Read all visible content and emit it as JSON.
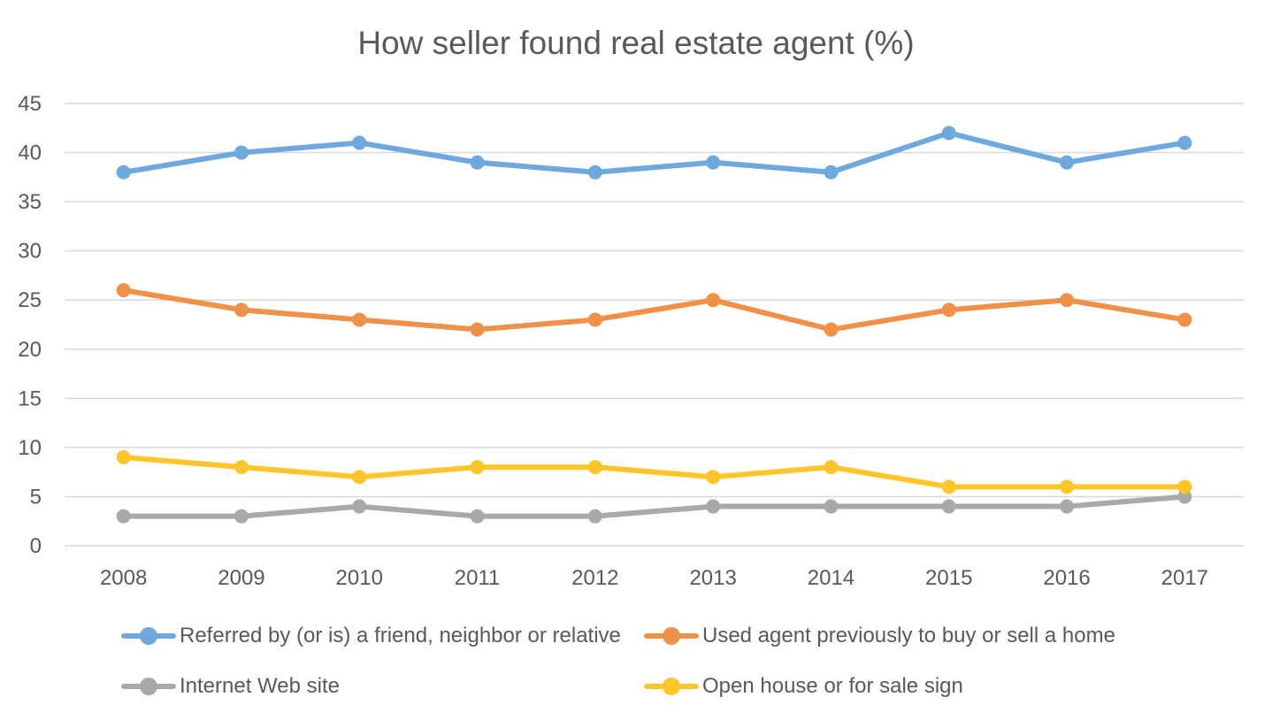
{
  "chart_data": {
    "type": "line",
    "title": "How seller found real estate agent (%)",
    "xlabel": "",
    "ylabel": "",
    "ylim": [
      0,
      45
    ],
    "yticks": [
      "0",
      "5",
      "10",
      "15",
      "20",
      "25",
      "30",
      "35",
      "40",
      "45"
    ],
    "categories": [
      "2008",
      "2009",
      "2010",
      "2011",
      "2012",
      "2013",
      "2014",
      "2015",
      "2016",
      "2017"
    ],
    "grid": "horizontal",
    "legend_position": "bottom",
    "series": [
      {
        "name": "Referred by (or is) a friend, neighbor or relative",
        "color": "#6FA8DC",
        "values": [
          38,
          40,
          41,
          39,
          38,
          39,
          38,
          42,
          39,
          41
        ]
      },
      {
        "name": "Used agent previously to buy or sell a home",
        "color": "#F0914A",
        "values": [
          26,
          24,
          23,
          22,
          23,
          25,
          22,
          24,
          25,
          23
        ]
      },
      {
        "name": "Internet Web site",
        "color": "#A9A9A9",
        "values": [
          3,
          3,
          4,
          3,
          3,
          4,
          4,
          4,
          4,
          5
        ]
      },
      {
        "name": "Open house or for sale sign",
        "color": "#FFC52B",
        "values": [
          9,
          8,
          7,
          8,
          8,
          7,
          8,
          6,
          6,
          6
        ]
      }
    ]
  }
}
